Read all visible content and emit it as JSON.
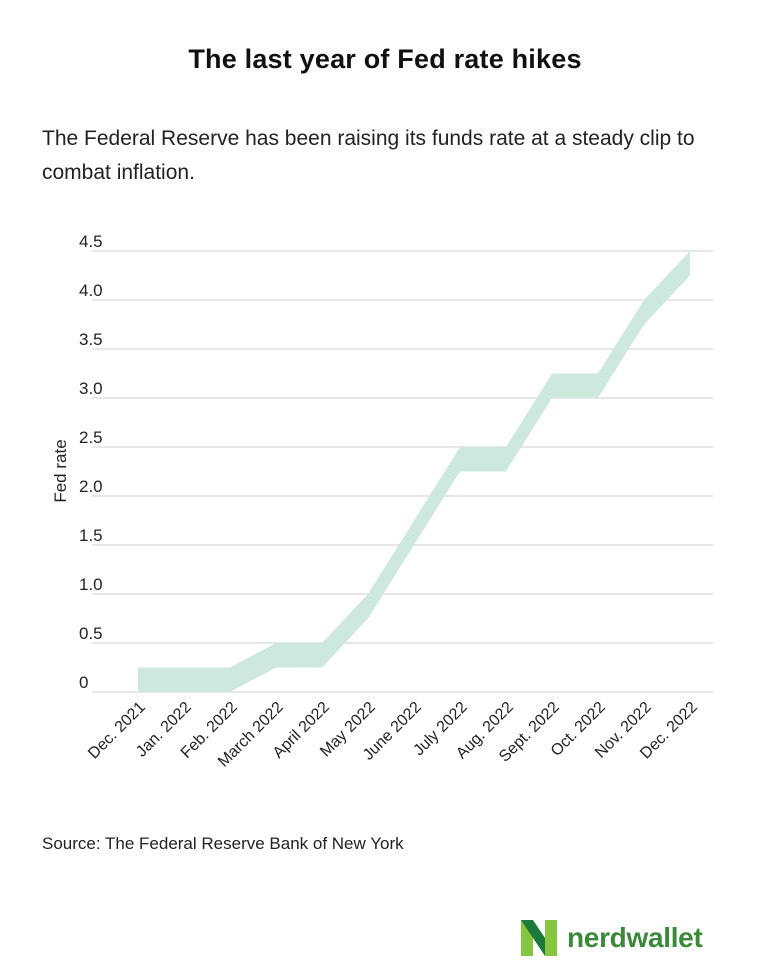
{
  "title": "The last year of Fed rate hikes",
  "subtitle": "The Federal Reserve has been raising its funds rate at a steady clip to combat inflation.",
  "source": "Source: The Federal Reserve Bank of New York",
  "brand": {
    "name": "nerdwallet",
    "logo_icon": "nerdwallet-n-logo-icon",
    "colors": {
      "light": "#86c540",
      "dark": "#1e7a3a",
      "text": "#3a8a3a"
    }
  },
  "chart_data": {
    "type": "area",
    "title": "",
    "xlabel": "",
    "ylabel": "Fed rate",
    "ylim": [
      0,
      4.5
    ],
    "yticks": [
      0,
      0.5,
      1.0,
      1.5,
      2.0,
      2.5,
      3.0,
      3.5,
      4.0,
      4.5
    ],
    "ytick_labels": [
      "0",
      "0.5",
      "1.0",
      "1.5",
      "2.0",
      "2.5",
      "3.0",
      "3.5",
      "4.0",
      "4.5"
    ],
    "grid": true,
    "legend": "none",
    "band_color": "#cde8dc",
    "categories": [
      "Dec. 2021",
      "Jan. 2022",
      "Feb. 2022",
      "March 2022",
      "April 2022",
      "May 2022",
      "June 2022",
      "July 2022",
      "Aug. 2022",
      "Sept. 2022",
      "Oct. 2022",
      "Nov. 2022",
      "Dec. 2022"
    ],
    "series": [
      {
        "name": "",
        "values": [
          0,
          0,
          0,
          0.25,
          0.25,
          0.75,
          1.5,
          2.25,
          2.25,
          3.0,
          3.0,
          3.75,
          4.25
        ]
      },
      {
        "name": "",
        "values": [
          0.25,
          0.25,
          0.25,
          0.5,
          0.5,
          1.0,
          1.75,
          2.5,
          2.5,
          3.25,
          3.25,
          4.0,
          4.5
        ]
      }
    ]
  }
}
